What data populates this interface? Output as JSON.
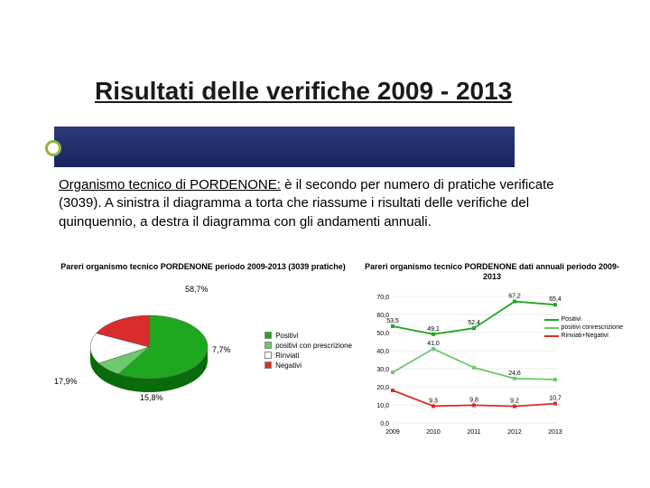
{
  "title": "Risultati delle verifiche 2009 - 2013",
  "desc_underline": "Organismo tecnico di PORDENONE:",
  "desc_rest": " è il secondo per numero di pratiche verificate (3039). A sinistra il diagramma a torta che riassume i risultati delle verifiche del quinquennio, a destra il diagramma con gli andamenti annuali.",
  "pie": {
    "title": "Pareri organismo tecnico PORDENONE periodo 2009-2013 (3039 pratiche)",
    "slices": [
      {
        "label": "Positivi",
        "pct": 58.7,
        "color": "#1fa81f",
        "label_pos": "top-right"
      },
      {
        "label": "positivi con prescrizione",
        "pct": 7.7,
        "color": "#6cc96c",
        "label_pos": "right"
      },
      {
        "label": "Rinviati",
        "pct": 15.8,
        "color": "#ffffff",
        "label_pos": "bottom"
      },
      {
        "label": "Negativi",
        "pct": 17.9,
        "color": "#d92c2c",
        "label_pos": "left"
      }
    ],
    "legend_items": [
      "Positivi",
      "positivi con prescrizione",
      "Rinviati",
      "Negativi"
    ],
    "legend_colors": [
      "#1fa81f",
      "#6cc96c",
      "#ffffff",
      "#d92c2c"
    ]
  },
  "line": {
    "title": "Pareri organismo tecnico PORDENONE dati annuali periodo 2009-2013",
    "years": [
      "2009",
      "2010",
      "2011",
      "2012",
      "2013"
    ],
    "ylim": [
      0,
      70
    ],
    "ytick_step": 10,
    "series": [
      {
        "name": "Positivi",
        "color": "#1fa81f",
        "values": [
          53.5,
          49.1,
          52.4,
          67.2,
          65.4
        ]
      },
      {
        "name": "positivi con­rescrizione",
        "color": "#6cc96c",
        "values": [
          28.0,
          41.0,
          30.6,
          24.6,
          24.0
        ]
      },
      {
        "name": "Rinviati+Negativi",
        "color": "#d92c2c",
        "values": [
          18.0,
          9.3,
          9.8,
          9.2,
          10.7
        ]
      }
    ],
    "data_labels": [
      {
        "x": 0,
        "y": 53.5,
        "t": "53,5"
      },
      {
        "x": 1,
        "y": 49.1,
        "t": "49,1"
      },
      {
        "x": 2,
        "y": 52.4,
        "t": "52,4"
      },
      {
        "x": 3,
        "y": 67.2,
        "t": "67,2"
      },
      {
        "x": 4,
        "y": 65.4,
        "t": "65,4"
      },
      {
        "x": 1,
        "y": 41.0,
        "t": "41,0"
      },
      {
        "x": 3,
        "y": 24.6,
        "t": "24,6"
      },
      {
        "x": 1,
        "y": 9.3,
        "t": "9,3"
      },
      {
        "x": 2,
        "y": 9.8,
        "t": "9,8"
      },
      {
        "x": 3,
        "y": 9.2,
        "t": "9,2"
      },
      {
        "x": 4,
        "y": 10.7,
        "t": "10,7"
      }
    ],
    "grid_color": "#dddddd",
    "axis_color": "#888888"
  }
}
